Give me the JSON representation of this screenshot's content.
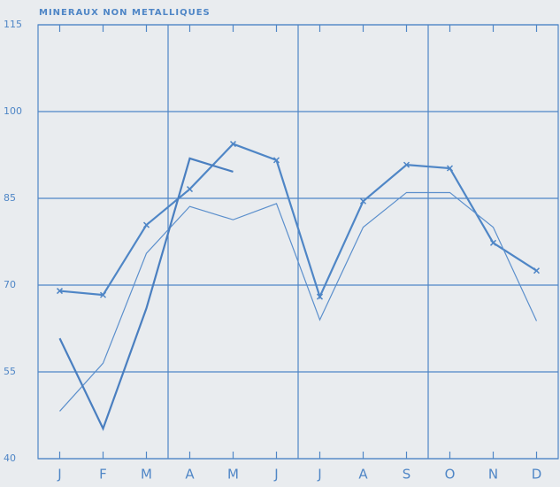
{
  "chart_data": {
    "type": "line",
    "title": "MINERAUX NON METALLIQUES",
    "categories": [
      "J",
      "F",
      "M",
      "A",
      "M",
      "J",
      "J",
      "A",
      "S",
      "O",
      "N",
      "D"
    ],
    "series": [
      {
        "color": "#4f86c6",
        "values": [
          69,
          68.3,
          80.4,
          86.6,
          94.4,
          91.6,
          68,
          84.5,
          90.8,
          90.2,
          77.3,
          72.5
        ]
      },
      {
        "color": "#5b8fcc",
        "values": [
          48.2,
          56.5,
          75.5,
          83.6,
          81.3,
          84.1,
          64,
          80,
          86,
          86,
          80,
          63.8
        ]
      },
      {
        "color": "#4a7fc0",
        "values": [
          60.8,
          45.2,
          66,
          91.9,
          89.6,
          null,
          null,
          null,
          null,
          null,
          null,
          null
        ]
      }
    ],
    "ylim": [
      40,
      115
    ],
    "yticks": [
      40,
      55,
      70,
      85,
      100,
      115
    ],
    "grid": true
  }
}
